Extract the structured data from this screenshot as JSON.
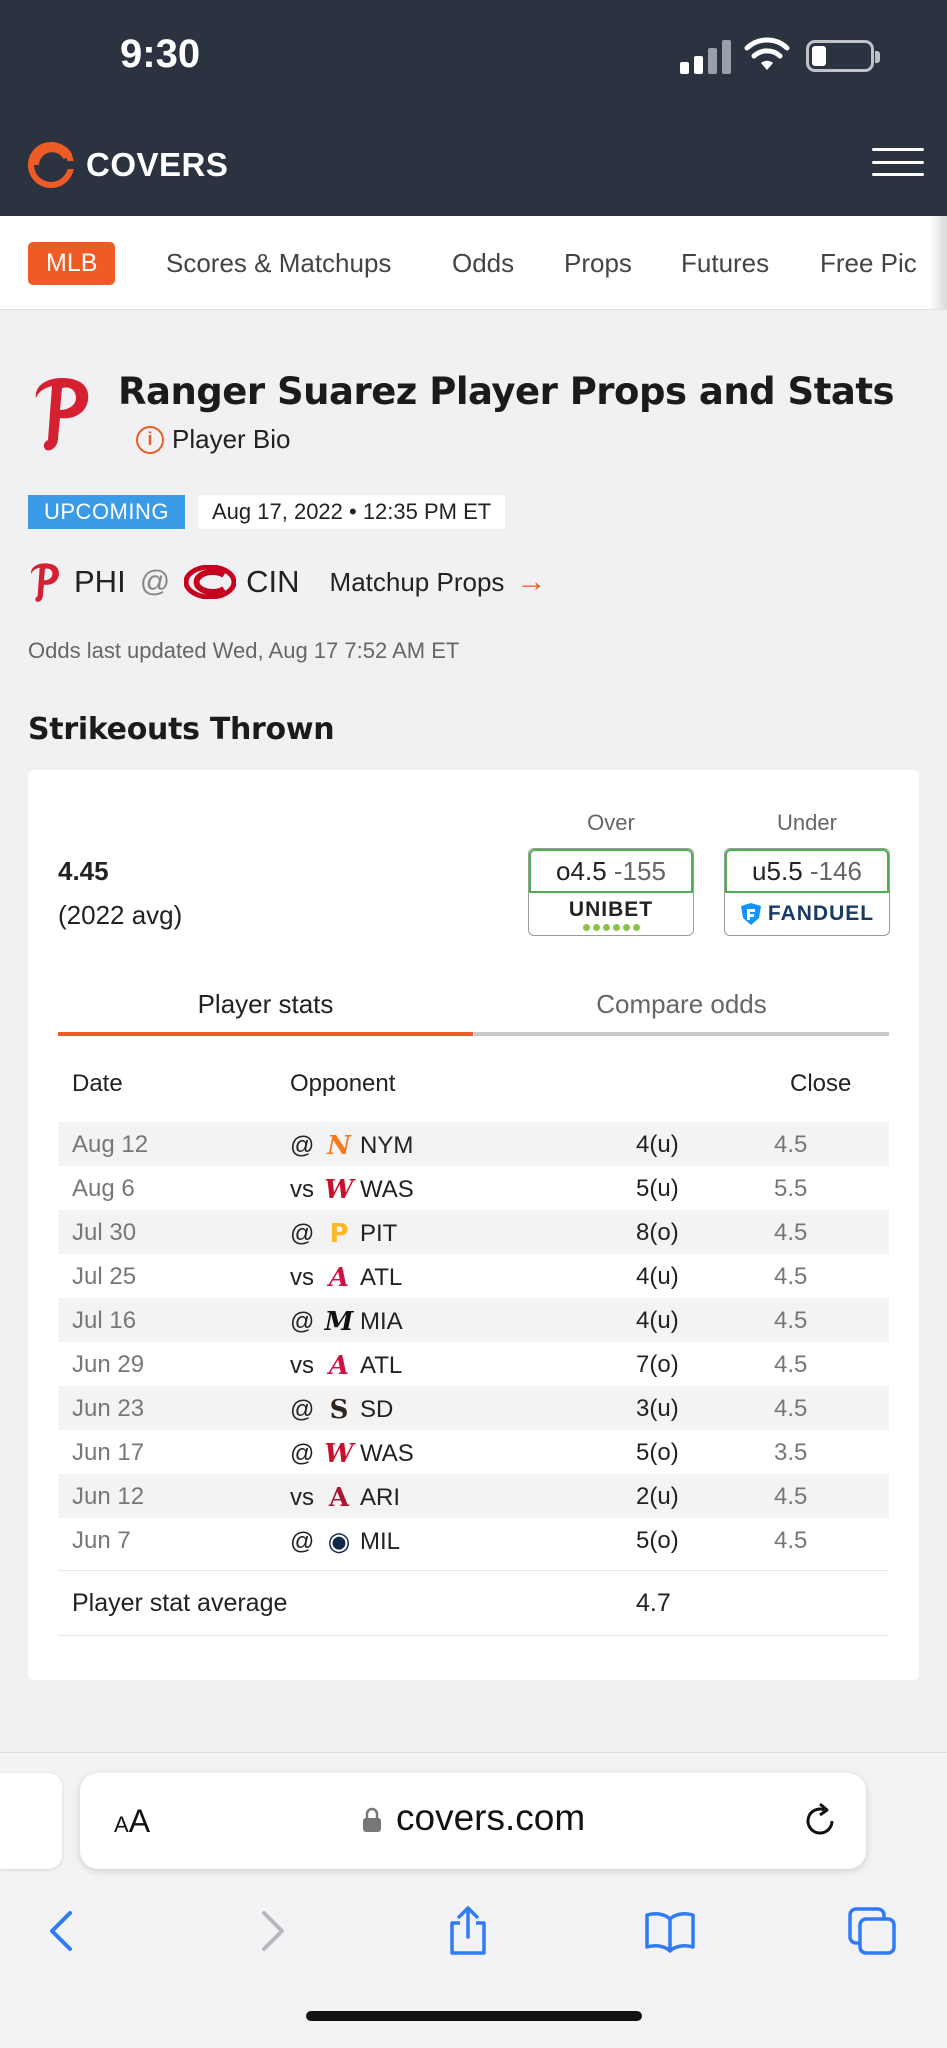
{
  "status_bar": {
    "time": "9:30"
  },
  "header": {
    "logo_text": "COVERS"
  },
  "sport_nav": {
    "active": "MLB",
    "links": [
      "Scores & Matchups",
      "Odds",
      "Props",
      "Futures",
      "Free Pic"
    ]
  },
  "player": {
    "title": "Ranger Suarez Player Props and Stats",
    "bio_link": "Player Bio"
  },
  "game": {
    "status": "UPCOMING",
    "datetime": "Aug 17, 2022 • 12:35 PM ET",
    "away": "PHI",
    "at": "@",
    "home": "CIN",
    "matchup_props": "Matchup Props",
    "arrow": "→",
    "odds_updated": "Odds last updated Wed, Aug 17 7:52 AM ET"
  },
  "prop": {
    "section_title": "Strikeouts Thrown",
    "average_value": "4.45",
    "average_label": "(2022 avg)",
    "over": {
      "header": "Over",
      "line": "o4.5",
      "price": "-155",
      "book": "UNIBET"
    },
    "under": {
      "header": "Under",
      "line": "u5.5",
      "price": "-146",
      "book": "FANDUEL"
    },
    "tabs": {
      "active": "Player stats",
      "inactive": "Compare odds"
    },
    "columns": {
      "date": "Date",
      "opponent": "Opponent",
      "close": "Close"
    },
    "rows": [
      {
        "date": "Aug 12",
        "pre": "@",
        "team": "NYM",
        "result": "4(u)",
        "close": "4.5"
      },
      {
        "date": "Aug 6",
        "pre": "vs",
        "team": "WAS",
        "result": "5(u)",
        "close": "5.5"
      },
      {
        "date": "Jul 30",
        "pre": "@",
        "team": "PIT",
        "result": "8(o)",
        "close": "4.5"
      },
      {
        "date": "Jul 25",
        "pre": "vs",
        "team": "ATL",
        "result": "4(u)",
        "close": "4.5"
      },
      {
        "date": "Jul 16",
        "pre": "@",
        "team": "MIA",
        "result": "4(u)",
        "close": "4.5"
      },
      {
        "date": "Jun 29",
        "pre": "vs",
        "team": "ATL",
        "result": "7(o)",
        "close": "4.5"
      },
      {
        "date": "Jun 23",
        "pre": "@",
        "team": "SD",
        "result": "3(u)",
        "close": "4.5"
      },
      {
        "date": "Jun 17",
        "pre": "@",
        "team": "WAS",
        "result": "5(o)",
        "close": "3.5"
      },
      {
        "date": "Jun 12",
        "pre": "vs",
        "team": "ARI",
        "result": "2(u)",
        "close": "4.5"
      },
      {
        "date": "Jun 7",
        "pre": "@",
        "team": "MIL",
        "result": "5(o)",
        "close": "4.5"
      }
    ],
    "stat_average_label": "Player stat average",
    "stat_average_value": "4.7"
  },
  "browser": {
    "aa_small": "A",
    "aa_large": "A",
    "url": "covers.com"
  },
  "colors": {
    "brand_orange": "#ef5b24",
    "header_dark": "#2b3340",
    "upcoming_blue": "#3a9be8",
    "odds_green": "#4cb050"
  }
}
